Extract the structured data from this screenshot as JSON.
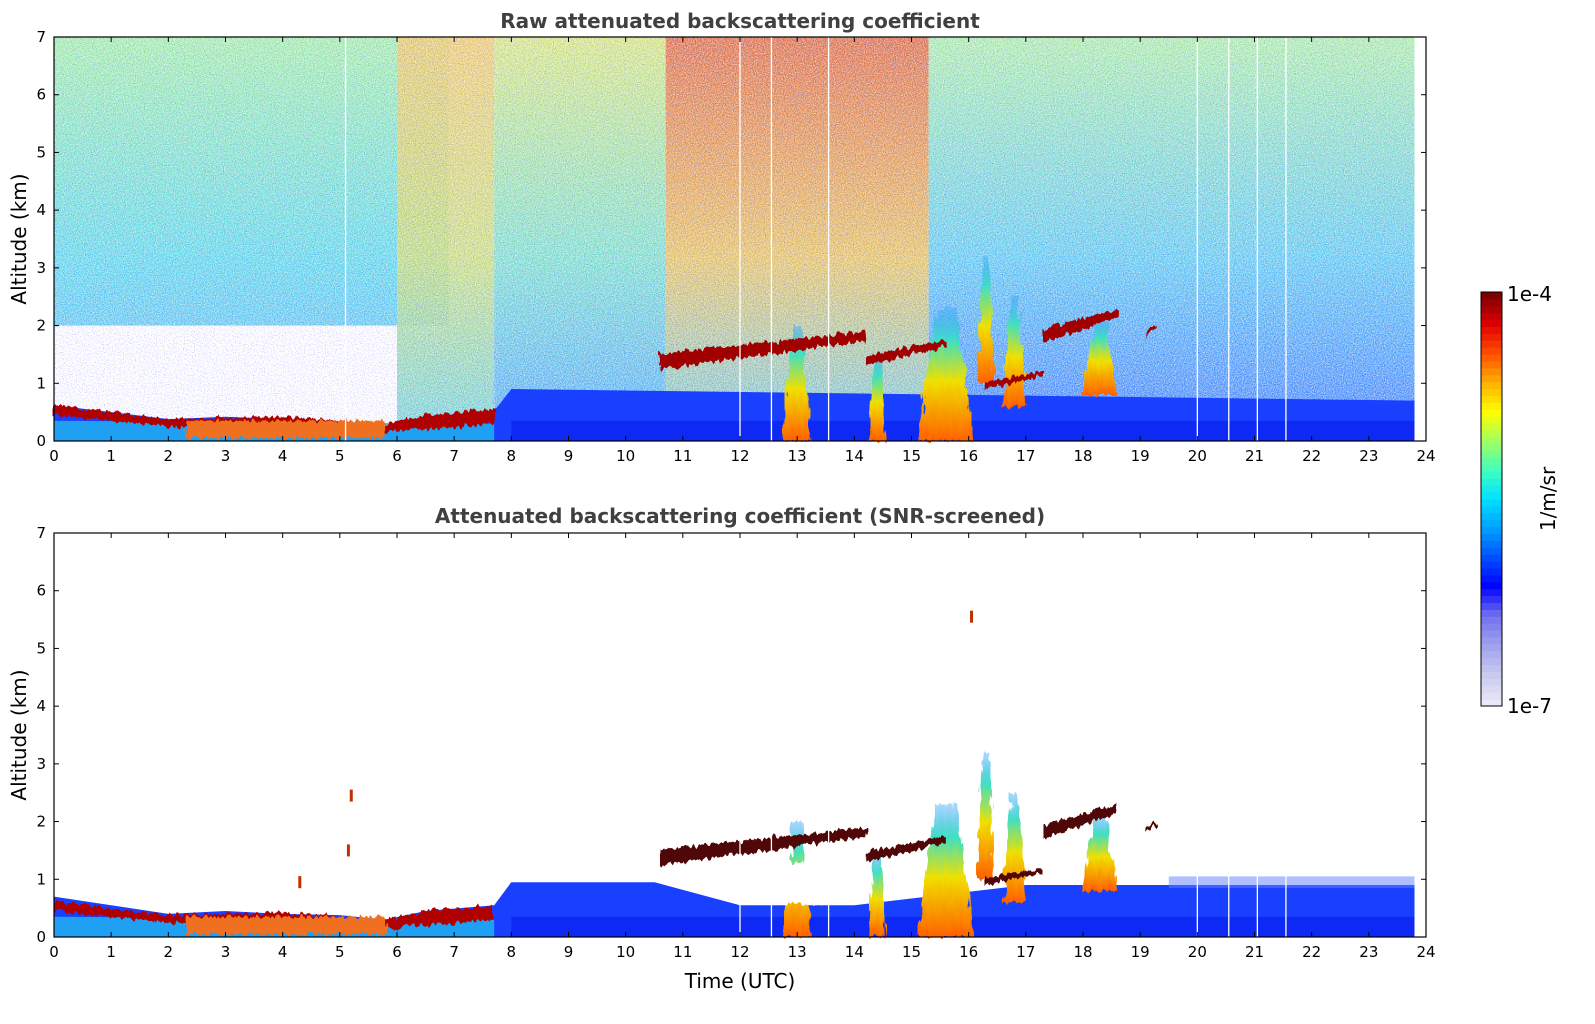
{
  "chart_data": [
    {
      "type": "heatmap",
      "title": "Raw attenuated backscattering coefficient",
      "xlabel": "",
      "ylabel": "Altitude (km)",
      "xlim": [
        0,
        24
      ],
      "ylim": [
        0,
        7
      ],
      "x_ticks": [
        "0",
        "1",
        "2",
        "3",
        "4",
        "5",
        "6",
        "7",
        "8",
        "9",
        "10",
        "11",
        "12",
        "13",
        "14",
        "15",
        "16",
        "17",
        "18",
        "19",
        "20",
        "21",
        "22",
        "23",
        "24"
      ],
      "y_ticks": [
        "0",
        "1",
        "2",
        "3",
        "4",
        "5",
        "6",
        "7"
      ],
      "data_end_x": 23.8,
      "background_noise": [
        {
          "x": [
            0,
            6.9
          ],
          "low_alt_noise_free_below_km": 2.0,
          "upper_level": "cyan-green"
        },
        {
          "x": [
            6,
            7.7
          ],
          "upper_level": "yellow-orange"
        },
        {
          "x": [
            7.7,
            10.7
          ],
          "upper_level": "cyan-yellow"
        },
        {
          "x": [
            10.7,
            15.3
          ],
          "upper_level": "orange-red"
        },
        {
          "x": [
            15.3,
            23.8
          ],
          "upper_level": "cyan-blue"
        }
      ],
      "boundary_layer_top_km": [
        {
          "x": 0,
          "y": 0.62
        },
        {
          "x": 1,
          "y": 0.5
        },
        {
          "x": 2,
          "y": 0.38
        },
        {
          "x": 3,
          "y": 0.42
        },
        {
          "x": 4,
          "y": 0.38
        },
        {
          "x": 5,
          "y": 0.34
        },
        {
          "x": 5.8,
          "y": 0.28
        },
        {
          "x": 6.5,
          "y": 0.42
        },
        {
          "x": 7.7,
          "y": 0.52
        },
        {
          "x": 8,
          "y": 0.9
        },
        {
          "x": 23.8,
          "y": 0.7
        }
      ],
      "aerosol_layers": [
        {
          "x": [
            0,
            7.7
          ],
          "y_km": [
            0.2,
            0.65
          ],
          "level": "max"
        },
        {
          "x": [
            10.6,
            14.2
          ],
          "y_km": [
            1.25,
            1.9
          ],
          "level": "max"
        },
        {
          "x": [
            14.2,
            15.6
          ],
          "y_km": [
            1.3,
            1.75
          ],
          "level": "max"
        },
        {
          "x": [
            16.3,
            17.3
          ],
          "y_km": [
            0.9,
            1.2
          ],
          "level": "max"
        },
        {
          "x": [
            17.3,
            18.6
          ],
          "y_km": [
            1.7,
            2.3
          ],
          "level": "max"
        },
        {
          "x": [
            19.1,
            19.3
          ],
          "y_km": [
            1.8,
            2.0
          ],
          "level": "max"
        }
      ],
      "convective_plumes": [
        {
          "x": 13.0,
          "width": 0.5,
          "y_km": [
            0,
            2.0
          ]
        },
        {
          "x": 14.4,
          "width": 0.3,
          "y_km": [
            0,
            1.5
          ]
        },
        {
          "x": 15.6,
          "width": 1.0,
          "y_km": [
            0,
            2.3
          ]
        },
        {
          "x": 16.3,
          "width": 0.3,
          "y_km": [
            1.0,
            3.2
          ]
        },
        {
          "x": 16.8,
          "width": 0.4,
          "y_km": [
            0.6,
            2.5
          ]
        },
        {
          "x": 18.3,
          "width": 0.6,
          "y_km": [
            0.8,
            2.1
          ]
        }
      ],
      "data_gaps_x": [
        5.1,
        12.0,
        12.55,
        13.55,
        20.0,
        20.55,
        21.05,
        21.55
      ]
    },
    {
      "type": "heatmap",
      "title": "Attenuated backscattering coefficient (SNR-screened)",
      "xlabel": "Time (UTC)",
      "ylabel": "Altitude (km)",
      "xlim": [
        0,
        24
      ],
      "ylim": [
        0,
        7
      ],
      "x_ticks": [
        "0",
        "1",
        "2",
        "3",
        "4",
        "5",
        "6",
        "7",
        "8",
        "9",
        "10",
        "11",
        "12",
        "13",
        "14",
        "15",
        "16",
        "17",
        "18",
        "19",
        "20",
        "21",
        "22",
        "23",
        "24"
      ],
      "y_ticks": [
        "0",
        "1",
        "2",
        "3",
        "4",
        "5",
        "6",
        "7"
      ],
      "data_end_x": 23.8,
      "boundary_layer_top_km": [
        {
          "x": 0,
          "y": 0.7
        },
        {
          "x": 1,
          "y": 0.55
        },
        {
          "x": 2,
          "y": 0.4
        },
        {
          "x": 3,
          "y": 0.45
        },
        {
          "x": 4,
          "y": 0.4
        },
        {
          "x": 5,
          "y": 0.38
        },
        {
          "x": 5.8,
          "y": 0.3
        },
        {
          "x": 6.5,
          "y": 0.45
        },
        {
          "x": 7.7,
          "y": 0.55
        },
        {
          "x": 8,
          "y": 0.95
        },
        {
          "x": 10.5,
          "y": 0.95
        },
        {
          "x": 12,
          "y": 0.55
        },
        {
          "x": 14,
          "y": 0.55
        },
        {
          "x": 17,
          "y": 0.9
        },
        {
          "x": 23.8,
          "y": 0.9
        }
      ],
      "aerosol_layers": [
        {
          "x": [
            0,
            7.7
          ],
          "y_km": [
            0.2,
            0.65
          ],
          "level": "max"
        },
        {
          "x": [
            10.6,
            14.2
          ],
          "y_km": [
            1.25,
            1.9
          ],
          "level": "max"
        },
        {
          "x": [
            14.2,
            15.6
          ],
          "y_km": [
            1.3,
            1.75
          ],
          "level": "max"
        },
        {
          "x": [
            16.3,
            17.3
          ],
          "y_km": [
            0.9,
            1.2
          ],
          "level": "max"
        },
        {
          "x": [
            17.3,
            18.6
          ],
          "y_km": [
            1.7,
            2.3
          ],
          "level": "max"
        },
        {
          "x": [
            19.1,
            19.3
          ],
          "y_km": [
            1.8,
            2.0
          ],
          "level": "max"
        }
      ],
      "isolated_features": [
        {
          "x": 16.05,
          "y_km": 5.55
        },
        {
          "x": 5.2,
          "y_km": 2.45
        },
        {
          "x": 5.15,
          "y_km": 1.5
        },
        {
          "x": 4.3,
          "y_km": 0.95
        }
      ],
      "data_gaps_x": [
        12.0,
        12.55,
        13.55,
        20.0,
        20.55,
        21.05,
        21.55
      ]
    }
  ],
  "colorbar": {
    "max_label": "1e-4",
    "min_label": "1e-7",
    "label": "1/m/sr",
    "colors": [
      "#e8e8f8",
      "#c8c8f0",
      "#a0a0ee",
      "#7070f0",
      "#0000ff",
      "#0050ff",
      "#00a0ff",
      "#00e0ff",
      "#40ffc0",
      "#a0ff60",
      "#ffff00",
      "#ffb000",
      "#ff5000",
      "#e00000",
      "#800000"
    ]
  }
}
